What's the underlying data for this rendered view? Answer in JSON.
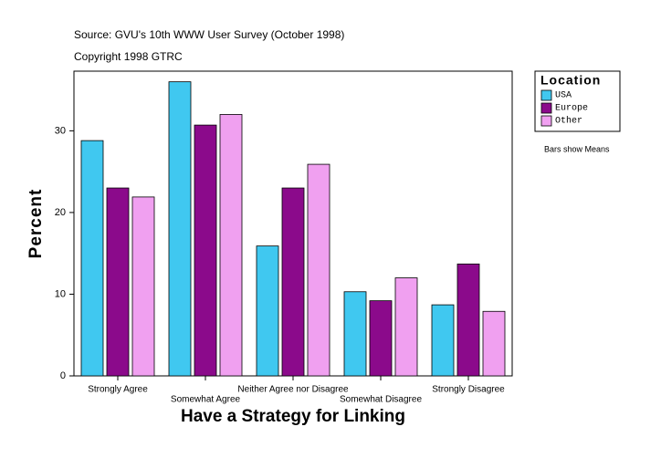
{
  "chart_data": {
    "type": "bar",
    "title": "Source: GVU's 10th WWW User Survey (October 1998)",
    "subtitle": "Copyright 1998 GTRC",
    "x_label": "Have a Strategy for Linking",
    "y_label": "Percent",
    "categories": [
      "Strongly Agree",
      "Somewhat Agree",
      "Neither Agree nor Disagree",
      "Somewhat Disagree",
      "Strongly Disagree"
    ],
    "series": [
      {
        "name": "USA",
        "color": "#40c8f0",
        "values": [
          28.8,
          36.0,
          15.9,
          10.3,
          8.7
        ]
      },
      {
        "name": "Europe",
        "color": "#8b0a8b",
        "values": [
          23.0,
          30.7,
          23.0,
          9.2,
          13.7
        ]
      },
      {
        "name": "Other",
        "color": "#f0a0f0",
        "values": [
          21.9,
          32.0,
          25.9,
          12.0,
          7.9
        ]
      }
    ],
    "legend_title": "Location",
    "note": "Bars show Means",
    "ylim": [
      0,
      37.3
    ],
    "yticks": [
      0,
      10,
      20,
      30
    ],
    "legend": "right"
  }
}
